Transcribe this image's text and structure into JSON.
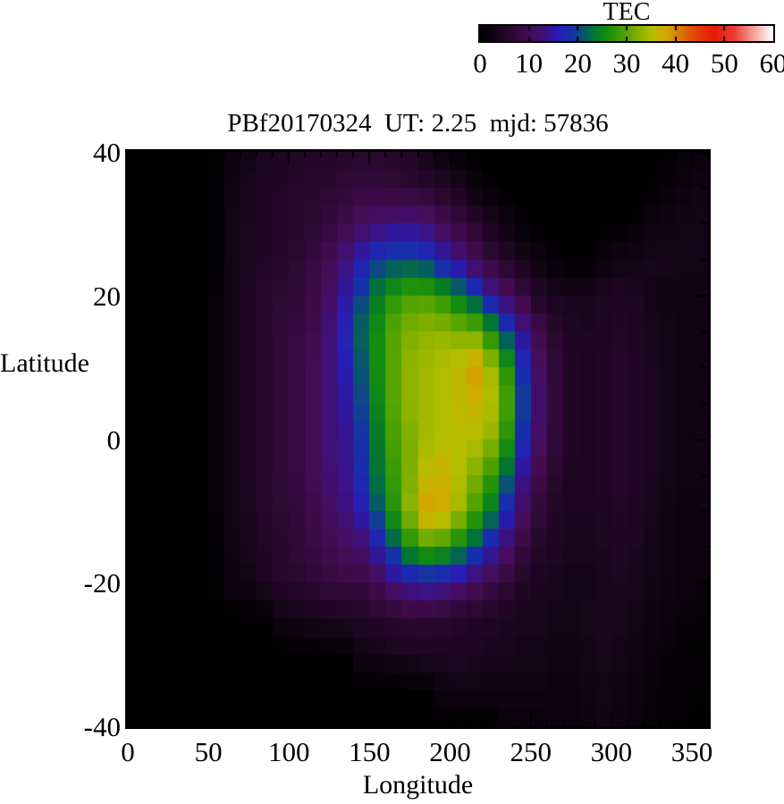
{
  "colorbar": {
    "title": "TEC",
    "min": 0,
    "max": 60,
    "tick_labels": [
      0,
      10,
      20,
      30,
      40,
      50,
      60
    ]
  },
  "plot": {
    "title": "PBf20170324  UT: 2.25  mjd: 57836",
    "xlabel": "Longitude",
    "ylabel": "Latitude",
    "x_tick_labels": [
      0,
      50,
      100,
      150,
      200,
      250,
      300,
      350
    ],
    "y_tick_labels": [
      40,
      20,
      0,
      -20,
      -40
    ],
    "xlim": [
      0,
      360
    ],
    "ylim": [
      -40,
      40
    ]
  },
  "chart_data": {
    "type": "heatmap",
    "title": "PBf20170324  UT: 2.25  mjd: 57836",
    "xlabel": "Longitude",
    "ylabel": "Latitude",
    "value_label": "TEC",
    "xlim": [
      0,
      360
    ],
    "ylim": [
      -40,
      40
    ],
    "zlim": [
      0,
      60
    ],
    "legend_position": "top-right colorbar",
    "grid": "off",
    "lon_centers": [
      5,
      15,
      25,
      35,
      45,
      55,
      65,
      75,
      85,
      95,
      105,
      115,
      125,
      135,
      145,
      155,
      165,
      175,
      185,
      195,
      205,
      215,
      225,
      235,
      245,
      255,
      265,
      275,
      285,
      295,
      305,
      315,
      325,
      335,
      345,
      355
    ],
    "lat_rows": [
      40,
      35,
      30,
      25,
      20,
      15,
      10,
      5,
      0,
      -5,
      -10,
      -15,
      -20,
      -25,
      -30,
      -35,
      -40
    ],
    "values": [
      [
        0,
        0,
        0,
        0,
        0,
        0.5,
        2,
        3,
        4,
        4.5,
        5,
        5,
        5,
        5.5,
        6,
        6,
        5.5,
        5,
        3,
        1.5,
        0.5,
        0,
        0,
        0,
        0,
        0,
        0,
        0,
        0,
        0,
        0,
        0,
        0,
        0.5,
        1,
        1.5
      ],
      [
        0,
        0,
        0,
        0,
        0,
        0.5,
        2.5,
        3.5,
        4.5,
        5,
        5.5,
        6,
        6.5,
        7,
        7.5,
        7.5,
        7,
        6.5,
        6,
        5,
        4,
        1.5,
        0.5,
        0,
        0,
        0,
        0,
        0,
        0,
        0,
        0,
        0,
        0.5,
        1,
        2,
        2.5
      ],
      [
        0,
        0,
        0,
        0,
        0,
        0.5,
        3,
        4,
        5,
        5.5,
        6,
        6.5,
        7.5,
        9,
        11,
        12,
        13,
        13,
        12,
        10,
        8,
        6,
        4,
        2,
        0.5,
        0,
        0,
        0,
        0,
        0,
        0,
        0.5,
        2,
        2.5,
        3,
        3
      ],
      [
        0,
        0,
        0,
        0,
        0,
        0.5,
        3,
        4,
        5,
        5.5,
        6.5,
        8,
        10,
        13,
        16,
        19,
        20,
        20,
        19,
        16,
        13,
        10,
        7,
        5,
        3.5,
        2,
        0.5,
        0,
        0,
        1.5,
        2.5,
        3,
        3.5,
        3.5,
        3,
        3
      ],
      [
        0,
        0,
        0,
        0,
        0,
        1,
        3,
        4.5,
        6,
        6.5,
        7,
        8.5,
        11,
        15,
        20,
        24,
        27,
        29,
        29,
        27,
        24,
        20,
        15,
        11,
        8,
        5,
        4,
        3.5,
        3.5,
        4,
        4.5,
        4,
        3,
        2.5,
        2.5,
        2.5
      ],
      [
        0,
        0,
        0,
        0,
        0,
        1,
        3,
        4.5,
        6,
        7,
        8,
        9.5,
        13,
        17,
        22,
        26,
        30,
        32,
        33,
        33,
        32,
        31,
        26,
        20,
        14,
        9,
        6,
        4.5,
        4,
        4.5,
        5,
        4.5,
        3.5,
        3,
        2.5,
        2.5
      ],
      [
        0,
        0,
        0,
        0,
        0,
        1,
        3,
        4.5,
        6,
        7,
        8,
        10,
        13,
        16,
        21,
        26,
        30,
        33,
        34,
        35,
        36,
        39,
        34,
        27,
        18,
        11,
        7,
        5,
        4.5,
        5,
        5.5,
        5,
        4,
        3,
        2.5,
        2.5
      ],
      [
        0,
        0,
        0,
        0,
        0,
        1,
        3,
        4.5,
        6,
        7,
        8,
        10,
        13,
        15,
        20,
        25,
        30,
        33,
        34,
        35,
        36,
        37,
        35,
        29,
        20,
        12,
        7.5,
        5,
        4.5,
        5,
        5.5,
        5,
        4,
        3,
        2.5,
        2.5
      ],
      [
        0,
        0,
        0,
        0,
        0,
        1,
        3,
        4.5,
        6,
        7,
        8,
        10,
        13,
        14,
        19,
        24,
        29,
        32,
        34,
        35,
        35,
        35,
        33,
        27,
        18,
        11,
        7,
        5,
        4.5,
        5,
        5.5,
        5,
        4,
        3,
        2.5,
        2.5
      ],
      [
        0,
        0,
        0,
        0,
        0,
        1,
        3,
        4.5,
        6,
        7,
        8,
        10,
        12,
        14,
        18,
        23,
        28,
        32,
        36,
        37,
        35,
        32,
        28,
        22,
        14,
        9,
        6,
        4.5,
        4.5,
        5,
        5.5,
        5,
        4,
        3,
        2.5,
        2.5
      ],
      [
        0,
        0,
        0,
        0,
        0,
        1,
        3,
        4,
        5.5,
        6.5,
        7.5,
        9,
        11,
        13,
        16,
        21,
        27,
        33,
        39,
        38,
        34,
        29,
        24,
        17,
        11,
        7,
        5,
        4,
        4,
        4.5,
        5,
        4.5,
        3.5,
        2.5,
        2,
        2
      ],
      [
        0,
        0,
        0,
        0,
        0,
        0.5,
        2.5,
        3.5,
        5,
        6,
        7,
        8,
        9.5,
        11,
        12,
        16,
        21,
        26,
        29,
        28,
        25,
        21,
        16,
        12,
        8,
        5.5,
        4.5,
        3.5,
        3.5,
        4,
        4.5,
        4,
        3,
        2.5,
        2,
        2
      ],
      [
        0,
        0,
        0,
        0,
        0,
        0.5,
        2,
        3,
        4.5,
        5.5,
        6,
        7,
        7.5,
        8,
        8,
        10,
        13,
        15,
        16,
        15,
        13,
        11,
        9,
        7,
        5,
        4,
        3.5,
        3,
        3,
        3.5,
        4,
        3.5,
        3,
        2.5,
        2,
        1.5
      ],
      [
        0,
        0,
        0,
        0,
        0,
        0,
        0,
        0,
        0,
        2.5,
        3,
        3.5,
        4,
        4.5,
        5,
        5.5,
        6,
        6.5,
        6.5,
        6,
        5.5,
        5,
        4.5,
        4,
        3.5,
        3.5,
        3,
        3,
        3.5,
        4,
        3.5,
        3,
        2,
        1.5,
        1,
        1
      ],
      [
        0,
        0,
        0,
        0,
        0,
        0,
        0,
        0,
        0,
        0,
        0,
        0,
        0,
        0,
        2.5,
        3,
        3.5,
        4,
        4.5,
        4.5,
        4.5,
        4,
        3.5,
        3.5,
        3,
        3,
        2.5,
        2.5,
        3,
        3.5,
        3,
        2.5,
        1.5,
        1,
        0.5,
        0.5
      ],
      [
        0,
        0,
        0,
        0,
        0,
        0,
        0,
        0,
        0,
        0,
        0,
        0,
        0,
        0,
        0,
        0,
        0,
        0,
        0,
        2,
        2.5,
        2.5,
        2.5,
        2.5,
        2.5,
        2.5,
        2,
        2,
        2.5,
        3,
        2.5,
        2,
        1,
        0.5,
        0.5,
        0.5
      ],
      [
        0,
        0,
        0,
        0,
        0,
        0,
        0,
        0,
        0,
        0,
        0,
        0,
        0,
        0,
        0,
        0,
        0,
        0,
        0,
        0,
        0,
        0,
        0,
        1.5,
        1.5,
        1.5,
        1.5,
        1.5,
        2,
        2.5,
        2,
        1.5,
        1,
        0.5,
        0.5,
        0
      ]
    ],
    "colormap_stops": [
      [
        0,
        "#000000"
      ],
      [
        6,
        "#28082e"
      ],
      [
        10,
        "#460c54"
      ],
      [
        13,
        "#3e1078"
      ],
      [
        16,
        "#281cb4"
      ],
      [
        19,
        "#1432aa"
      ],
      [
        21,
        "#08556e"
      ],
      [
        23,
        "#007337"
      ],
      [
        26,
        "#148c0f"
      ],
      [
        29,
        "#46a000"
      ],
      [
        32,
        "#7daf00"
      ],
      [
        35,
        "#b4be00"
      ],
      [
        38,
        "#d2aa00"
      ],
      [
        41,
        "#dc7800"
      ],
      [
        44,
        "#e14600"
      ],
      [
        48,
        "#e61905"
      ],
      [
        52,
        "#eb3c32"
      ],
      [
        56,
        "#f5a096"
      ],
      [
        60,
        "#ffffff"
      ]
    ]
  }
}
